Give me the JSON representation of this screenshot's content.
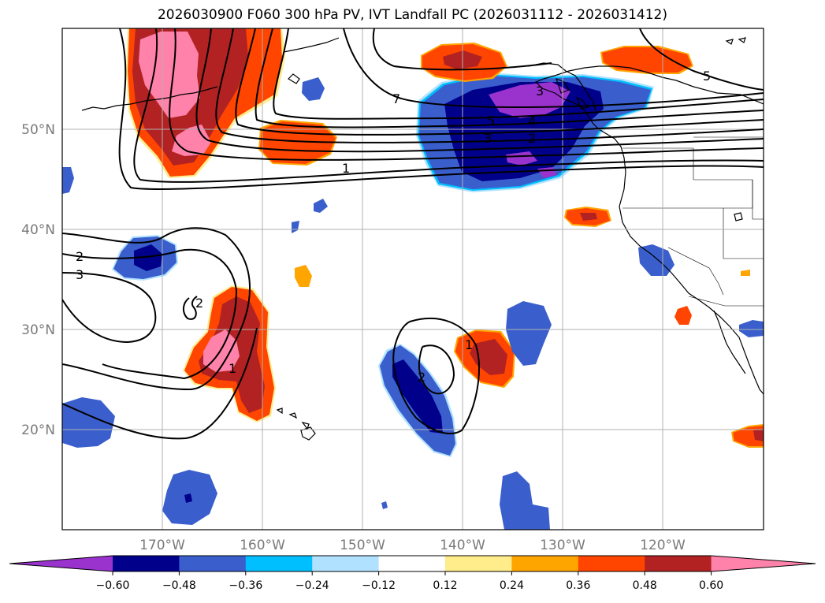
{
  "title": "2026030900 F060 300 hPa PV, IVT Landfall PC (2026031112 - 2026031412)",
  "lat_labels": [
    "50°N",
    "40°N",
    "30°N",
    "20°N"
  ],
  "lon_labels": [
    "170°W",
    "160°W",
    "150°W",
    "140°W",
    "130°W",
    "120°W"
  ],
  "colorbar": {
    "tick_labels": [
      "−0.60",
      "−0.48",
      "−0.36",
      "−0.24",
      "−0.12",
      "0.12",
      "0.24",
      "0.36",
      "0.48",
      "0.60"
    ],
    "colors": [
      "#9a32cd",
      "#00008b",
      "#3a5fcd",
      "#00bfff",
      "#b0e2ff",
      "#ffffff",
      "#ffec8b",
      "#ffa500",
      "#ff4500",
      "#b22222",
      "#ff82ab"
    ]
  },
  "contour_labels": [
    "7",
    "5",
    "1",
    "2",
    "3",
    "5",
    "4",
    "3",
    "2",
    "1",
    "2",
    "3",
    "1",
    "2"
  ]
}
